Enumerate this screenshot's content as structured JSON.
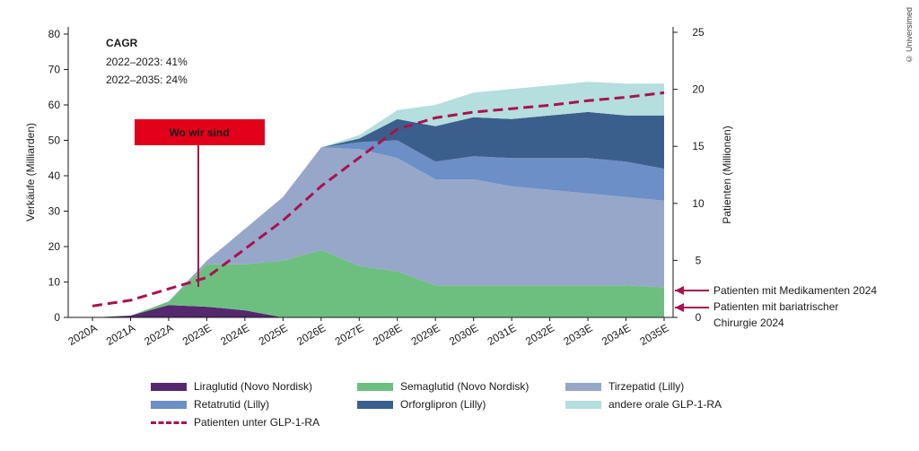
{
  "chart_data": {
    "type": "area",
    "categories": [
      "2020A",
      "2021A",
      "2022A",
      "2023E",
      "2024E",
      "2025E",
      "2026E",
      "2027E",
      "2028E",
      "2029E",
      "2030E",
      "2031E",
      "2032E",
      "2033E",
      "2034E",
      "2035E"
    ],
    "ylabel_left": "Verkäufe (Milliarden)",
    "ylabel_right": "Patienten (Millionen)",
    "ylim_left": [
      0,
      80
    ],
    "yticks_left": [
      "0",
      "10",
      "20",
      "30",
      "40",
      "50",
      "60",
      "70",
      "80"
    ],
    "ylim_right": [
      0,
      25
    ],
    "yticks_right": [
      "0",
      "5",
      "10",
      "15",
      "20",
      "25"
    ],
    "series": [
      {
        "name": "Liraglutid (Novo Nordisk)",
        "color": "#55286f",
        "values": [
          0,
          0.5,
          3.5,
          3,
          2,
          0,
          0,
          0,
          0,
          0,
          0,
          0,
          0,
          0,
          0,
          0
        ]
      },
      {
        "name": "Semaglutid (Novo Nordisk)",
        "color": "#6dbf80",
        "values": [
          0,
          0,
          1,
          12,
          13,
          16,
          19,
          14.5,
          13,
          9,
          9,
          9,
          9,
          9,
          9,
          8.5
        ]
      },
      {
        "name": "Tirzepatid (Lilly)",
        "color": "#97a7c9",
        "values": [
          0,
          0,
          0,
          1,
          10,
          18,
          29,
          33,
          32,
          30,
          30,
          28,
          27,
          26,
          25,
          24.5
        ]
      },
      {
        "name": "Retatrutid (Lilly)",
        "color": "#6b8fc6",
        "values": [
          0,
          0,
          0,
          0,
          0,
          0,
          0,
          2,
          5,
          5,
          6.5,
          8,
          9,
          10,
          10,
          9
        ]
      },
      {
        "name": "Orforglipron (Lilly)",
        "color": "#3b5f8c",
        "values": [
          0,
          0,
          0,
          0,
          0,
          0,
          0,
          1,
          6,
          10,
          11,
          11,
          12,
          13,
          13,
          15
        ]
      },
      {
        "name": "andere orale GLP-1-RA",
        "color": "#b5dede",
        "values": [
          0,
          0,
          0,
          0,
          0,
          0,
          0,
          1,
          2.5,
          6,
          7,
          8.5,
          8.5,
          8.5,
          9,
          9
        ]
      }
    ],
    "line_series": {
      "name": "Patienten unter GLP-1-RA",
      "axis": "right",
      "color": "#a8124f",
      "values": [
        1,
        1.5,
        2.5,
        3.5,
        6,
        8.5,
        11.5,
        14,
        16.5,
        17.5,
        18,
        18.3,
        18.6,
        19,
        19.3,
        19.7
      ]
    },
    "annotations": {
      "cagr_title": "CAGR",
      "cagr_line1": "2022–2023: 41%",
      "cagr_line2": "2022–2035: 24%",
      "marker_label": "Wo wir sind",
      "patients_2024": "Patienten mit Medikamenten 2024",
      "bariatric_1": "Patienten mit bariatrischer",
      "bariatric_2": "Chirurgie 2024"
    },
    "source": "© Universimed"
  }
}
